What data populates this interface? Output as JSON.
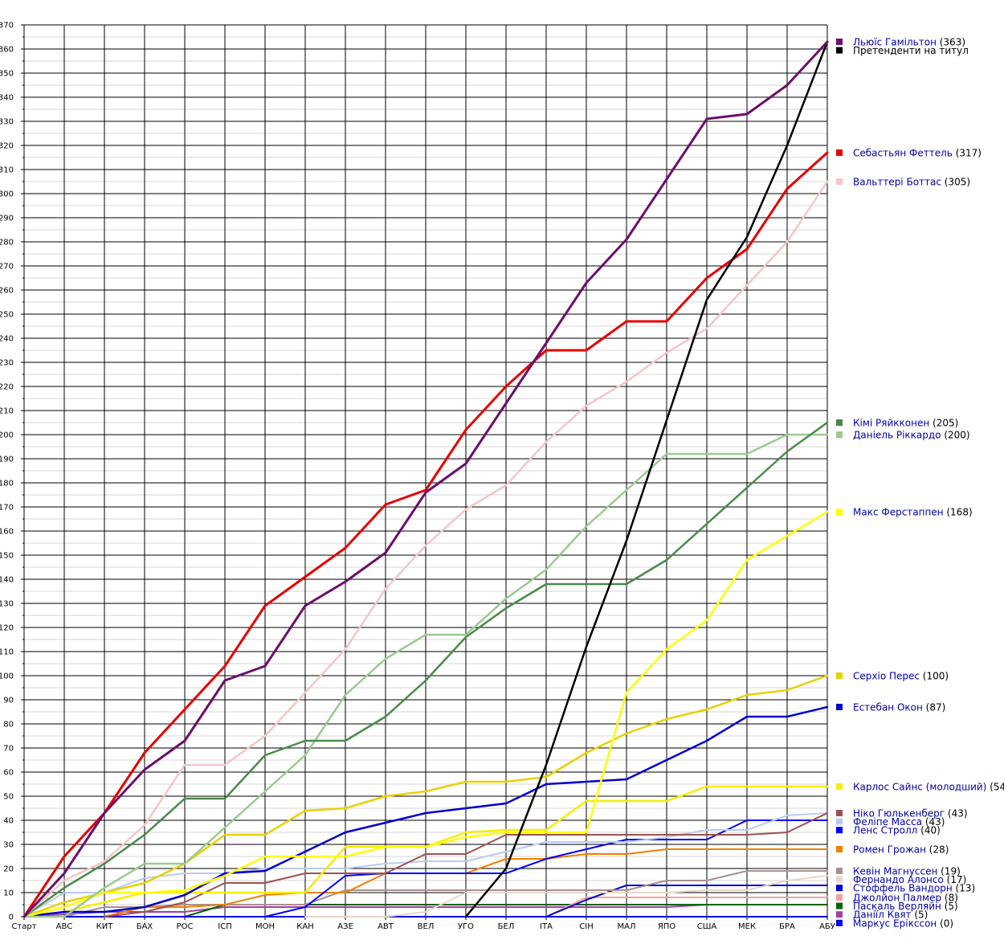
{
  "chart_data": {
    "type": "line",
    "title": "",
    "xlabel": "",
    "ylabel": "",
    "ylim": [
      0,
      370
    ],
    "y_major_step": 10,
    "grid": "on",
    "legend_position": "right",
    "categories": [
      "Старт",
      "АВС",
      "КИТ",
      "БАХ",
      "РОС",
      "ІСП",
      "МОН",
      "КАН",
      "АЗЕ",
      "АВТ",
      "ВЕЛ",
      "УГО",
      "БЕЛ",
      "ІТА",
      "СІН",
      "МАЛ",
      "ЯПО",
      "США",
      "МЕК",
      "БРА",
      "АБУ"
    ],
    "series": [
      {
        "name": "Льюїс Гамільтон",
        "total": "(363)",
        "color": "#6b0f6b",
        "width": 3,
        "values": [
          0,
          18,
          43,
          61,
          73,
          98,
          104,
          129,
          139,
          151,
          176,
          188,
          213,
          238,
          263,
          281,
          306,
          331,
          333,
          345,
          363
        ]
      },
      {
        "name": "Претенденти на титул",
        "total": "",
        "color": "#000000",
        "width": 2.5,
        "start": 11,
        "values": [
          null,
          null,
          null,
          null,
          null,
          null,
          null,
          null,
          null,
          null,
          null,
          0,
          20,
          63,
          112,
          156,
          206,
          256,
          282,
          320,
          363
        ]
      },
      {
        "name": "Себастьян Феттель",
        "total": "(317)",
        "color": "#e60000",
        "width": 3,
        "values": [
          0,
          25,
          43,
          68,
          86,
          104,
          129,
          141,
          153,
          171,
          177,
          202,
          220,
          235,
          235,
          247,
          247,
          265,
          277,
          302,
          317
        ]
      },
      {
        "name": "Вальттері Боттас",
        "total": "(305)",
        "color": "#f5c6c6",
        "width": 2.5,
        "values": [
          0,
          15,
          23,
          38,
          63,
          63,
          75,
          93,
          111,
          136,
          154,
          169,
          179,
          197,
          212,
          222,
          234,
          244,
          262,
          280,
          305
        ]
      },
      {
        "name": "Кімі Ряйкконен",
        "total": "(205)",
        "color": "#4a8a4a",
        "width": 2.5,
        "values": [
          0,
          12,
          22,
          34,
          49,
          49,
          67,
          73,
          73,
          83,
          98,
          116,
          128,
          138,
          138,
          138,
          148,
          163,
          178,
          193,
          205
        ]
      },
      {
        "name": "Даніель Ріккардо",
        "total": "(200)",
        "color": "#9acb90",
        "width": 2.5,
        "values": [
          0,
          0,
          12,
          22,
          22,
          37,
          52,
          67,
          92,
          107,
          117,
          117,
          132,
          144,
          162,
          177,
          192,
          192,
          192,
          200,
          200
        ]
      },
      {
        "name": "Макс Ферстаппен",
        "total": "(168)",
        "color": "#ffff00",
        "width": 2.5,
        "values": [
          0,
          4,
          10,
          10,
          11,
          17,
          25,
          25,
          25,
          29,
          29,
          33,
          35,
          35,
          35,
          93,
          111,
          123,
          148,
          158,
          168
        ]
      },
      {
        "name": "Серхіо Перес",
        "total": "(100)",
        "color": "#e8d200",
        "width": 2.5,
        "values": [
          0,
          6,
          10,
          14,
          22,
          34,
          34,
          44,
          45,
          50,
          52,
          56,
          56,
          58,
          68,
          76,
          82,
          86,
          92,
          94,
          100
        ]
      },
      {
        "name": "Естебан Окон",
        "total": "(87)",
        "color": "#0000cc",
        "width": 2.5,
        "values": [
          0,
          2,
          2,
          4,
          9,
          18,
          19,
          27,
          35,
          39,
          43,
          45,
          47,
          55,
          56,
          57,
          65,
          73,
          83,
          83,
          87
        ]
      },
      {
        "name": "Карлос Сайнс (молодший)",
        "total": "(54)",
        "color": "#f5ef00",
        "width": 2.5,
        "values": [
          0,
          2,
          6,
          10,
          10,
          10,
          10,
          10,
          29,
          29,
          29,
          35,
          36,
          36,
          48,
          48,
          48,
          54,
          54,
          54,
          54
        ]
      },
      {
        "name": "Ніко Гюлькенберг",
        "total": "(43)",
        "color": "#a05050",
        "width": 2,
        "start": 2,
        "values": [
          null,
          null,
          0,
          2,
          6,
          14,
          14,
          18,
          18,
          18,
          26,
          26,
          34,
          34,
          34,
          34,
          34,
          34,
          34,
          35,
          43
        ]
      },
      {
        "name": "Феліпе Масса",
        "total": "(43)",
        "color": "#b8ccf0",
        "width": 2,
        "values": [
          0,
          10,
          10,
          16,
          18,
          18,
          20,
          20,
          20,
          22,
          23,
          23,
          27,
          31,
          31,
          31,
          33,
          36,
          36,
          42,
          43
        ]
      },
      {
        "name": "Ленс Стролл",
        "total": "(40)",
        "color": "#0000ff",
        "width": 2,
        "values": [
          0,
          0,
          0,
          0,
          0,
          0,
          0,
          4,
          17,
          18,
          18,
          18,
          18,
          24,
          28,
          32,
          32,
          32,
          40,
          40,
          40
        ]
      },
      {
        "name": "Ромен Грожан",
        "total": "(28)",
        "color": "#f08000",
        "width": 2,
        "start": 2,
        "values": [
          null,
          null,
          0,
          4,
          4,
          5,
          9,
          10,
          10,
          18,
          18,
          18,
          24,
          24,
          26,
          26,
          28,
          28,
          28,
          28,
          28
        ]
      },
      {
        "name": "Кевін Магнуссен",
        "total": "(19)",
        "color": "#a89090",
        "width": 2,
        "values": [
          0,
          0,
          4,
          4,
          5,
          5,
          5,
          5,
          11,
          11,
          11,
          11,
          11,
          11,
          11,
          11,
          15,
          15,
          19,
          19,
          19
        ]
      },
      {
        "name": "Фернандо Алонсо",
        "total": "(17)",
        "color": "#e8d8c8",
        "width": 2,
        "start": 7,
        "values": [
          null,
          null,
          null,
          null,
          null,
          null,
          null,
          0,
          0,
          0,
          2,
          10,
          10,
          10,
          10,
          10,
          10,
          11,
          11,
          15,
          17
        ]
      },
      {
        "name": "Стоффель Вандорн",
        "total": "(13)",
        "color": "#0000dd",
        "width": 2,
        "start": 11,
        "values": [
          null,
          null,
          null,
          null,
          null,
          null,
          null,
          null,
          null,
          null,
          null,
          0,
          0,
          0,
          7,
          13,
          13,
          13,
          13,
          13,
          13
        ]
      },
      {
        "name": "Джолйон Палмер",
        "total": "(8)",
        "color": "#f5a0a0",
        "width": 2,
        "start": 13,
        "values": [
          null,
          null,
          null,
          null,
          null,
          null,
          null,
          null,
          null,
          null,
          null,
          null,
          null,
          0,
          8,
          8,
          8,
          8,
          8,
          8,
          8
        ]
      },
      {
        "name": "Паскаль Верляйн",
        "total": "(5)",
        "color": "#006600",
        "width": 2,
        "start": 4,
        "values": [
          null,
          null,
          null,
          null,
          0,
          5,
          5,
          5,
          5,
          5,
          5,
          5,
          5,
          5,
          5,
          5,
          5,
          5,
          5,
          5,
          5
        ]
      },
      {
        "name": "Даніїл Квят",
        "total": "(5)",
        "color": "#a040a0",
        "width": 2,
        "values": [
          0,
          1,
          2,
          2,
          2,
          4,
          4,
          4,
          4,
          4,
          4,
          4,
          4,
          4,
          4,
          4,
          4,
          5,
          5,
          5,
          5
        ]
      },
      {
        "name": "Маркус Ерікссон",
        "total": "(0)",
        "color": "#0000ee",
        "width": 2,
        "values": [
          0,
          0,
          0,
          0,
          0,
          0,
          0,
          0,
          0,
          0,
          0,
          0,
          0,
          0,
          0,
          0,
          0,
          0,
          0,
          0,
          0
        ]
      }
    ]
  }
}
